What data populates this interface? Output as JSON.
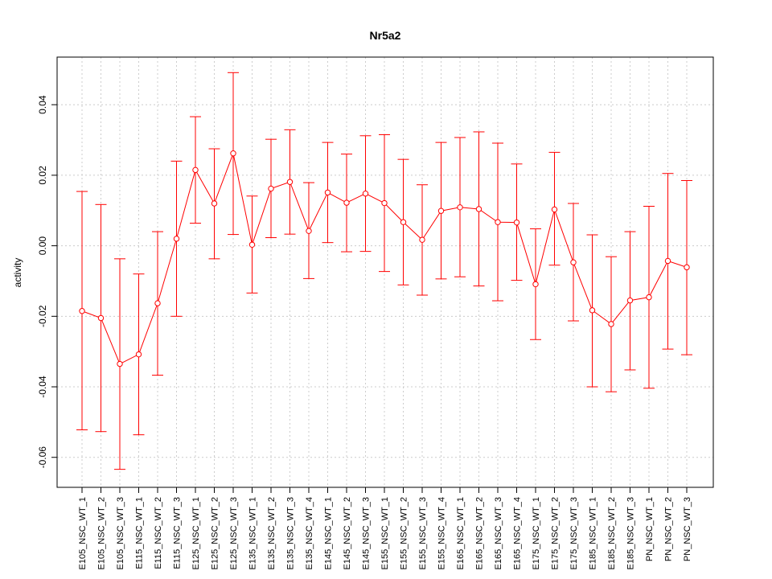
{
  "chart_data": {
    "type": "line",
    "title": "Nr5a2",
    "xlabel": "",
    "ylabel": "activity",
    "ylim": [
      -0.0685,
      0.0535
    ],
    "yticks": [
      -0.06,
      -0.04,
      -0.02,
      0.0,
      0.02,
      0.04
    ],
    "ytick_labels": [
      "-0.06",
      "-0.04",
      "-0.02",
      "0.00",
      "0.02",
      "0.04"
    ],
    "grid": true,
    "colors": {
      "series": "#ff0000",
      "grid": "#cccccc",
      "axis": "#000000"
    },
    "categories": [
      "E105_NSC_WT_1",
      "E105_NSC_WT_2",
      "E105_NSC_WT_3",
      "E115_NSC_WT_1",
      "E115_NSC_WT_2",
      "E115_NSC_WT_3",
      "E125_NSC_WT_1",
      "E125_NSC_WT_2",
      "E125_NSC_WT_3",
      "E135_NSC_WT_1",
      "E135_NSC_WT_2",
      "E135_NSC_WT_3",
      "E135_NSC_WT_4",
      "E145_NSC_WT_1",
      "E145_NSC_WT_2",
      "E145_NSC_WT_3",
      "E155_NSC_WT_1",
      "E155_NSC_WT_2",
      "E155_NSC_WT_3",
      "E155_NSC_WT_4",
      "E165_NSC_WT_1",
      "E165_NSC_WT_2",
      "E165_NSC_WT_3",
      "E165_NSC_WT_4",
      "E175_NSC_WT_1",
      "E175_NSC_WT_2",
      "E175_NSC_WT_3",
      "E185_NSC_WT_1",
      "E185_NSC_WT_2",
      "E185_NSC_WT_3",
      "PN_NSC_WT_1",
      "PN_NSC_WT_2",
      "PN_NSC_WT_3"
    ],
    "values": [
      -0.0185,
      -0.0205,
      -0.0335,
      -0.0308,
      -0.0163,
      0.002,
      0.0215,
      0.012,
      0.0262,
      0.0003,
      0.0162,
      0.0181,
      0.0042,
      0.0151,
      0.0122,
      0.0148,
      0.0121,
      0.0067,
      0.0017,
      0.0099,
      0.0109,
      0.0104,
      0.0067,
      0.0066,
      -0.0109,
      0.0103,
      -0.0047,
      -0.0183,
      -0.0222,
      -0.0155,
      -0.0146,
      -0.0043,
      -0.0061
    ],
    "upper": [
      0.0154,
      0.0117,
      -0.0037,
      -0.008,
      0.004,
      0.024,
      0.0366,
      0.0275,
      0.0491,
      0.0141,
      0.0302,
      0.0329,
      0.0179,
      0.0293,
      0.026,
      0.0312,
      0.0315,
      0.0245,
      0.0173,
      0.0293,
      0.0307,
      0.0323,
      0.0291,
      0.0232,
      0.0048,
      0.0265,
      0.012,
      0.0031,
      -0.0031,
      0.004,
      0.0112,
      0.0205,
      0.0185
    ],
    "lower": [
      -0.0522,
      -0.0527,
      -0.0634,
      -0.0536,
      -0.0367,
      -0.02,
      0.0064,
      -0.0037,
      0.0032,
      -0.0134,
      0.0023,
      0.0033,
      -0.0093,
      0.0009,
      -0.0017,
      -0.0016,
      -0.0073,
      -0.0111,
      -0.014,
      -0.0094,
      -0.0088,
      -0.0114,
      -0.0156,
      -0.0098,
      -0.0266,
      -0.0055,
      -0.0213,
      -0.04,
      -0.0414,
      -0.0352,
      -0.0404,
      -0.0293,
      -0.0309
    ]
  }
}
